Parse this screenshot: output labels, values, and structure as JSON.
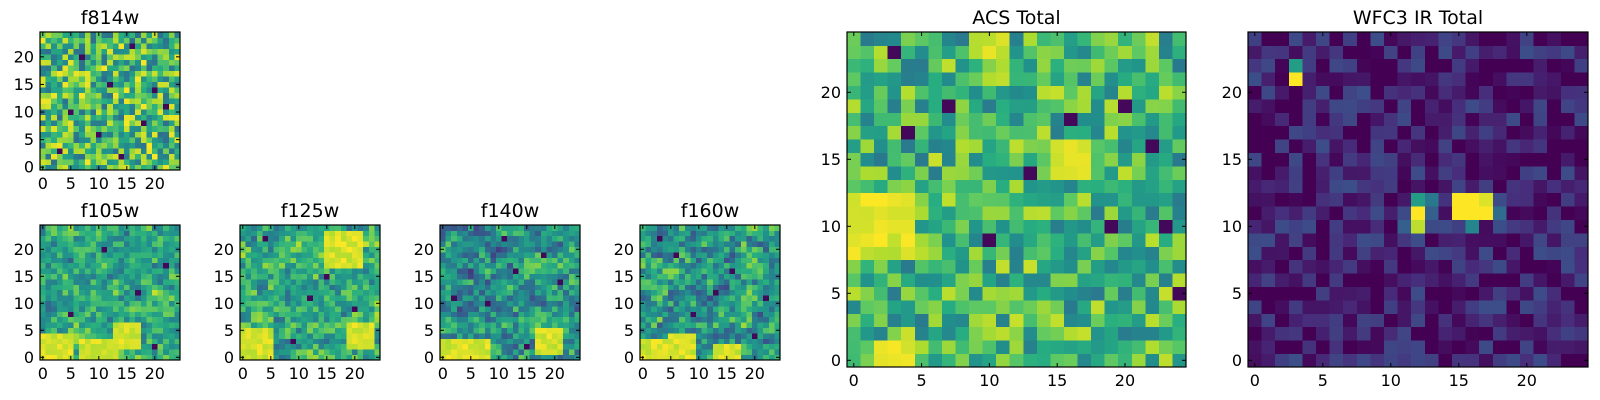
{
  "colormap": "viridis",
  "colormap_stops": [
    "#440154",
    "#472d7b",
    "#3b528b",
    "#2c728e",
    "#21918c",
    "#28ae80",
    "#5ec962",
    "#addc30",
    "#fde725"
  ],
  "chart_data": [
    {
      "id": "f814w",
      "type": "heatmap",
      "title": "f814w",
      "grid_size": 25,
      "seed": 814,
      "xlim": [
        0,
        24
      ],
      "ylim": [
        0,
        24
      ],
      "x_ticks": [
        0,
        5,
        10,
        15,
        20
      ],
      "y_ticks": [
        0,
        5,
        10,
        15,
        20
      ],
      "value_range": [
        0,
        1
      ],
      "base_level": 0.68,
      "noise_amplitude": 0.32,
      "smoothing": 0,
      "dark_pixels": [
        [
          5,
          10
        ],
        [
          18,
          8
        ],
        [
          12,
          15
        ],
        [
          7,
          20
        ],
        [
          20,
          14
        ],
        [
          3,
          3
        ],
        [
          16,
          22
        ],
        [
          10,
          6
        ],
        [
          22,
          11
        ],
        [
          14,
          2
        ]
      ],
      "bright_patches": []
    },
    {
      "id": "f105w",
      "type": "heatmap",
      "title": "f105w",
      "grid_size": 25,
      "seed": 105,
      "xlim": [
        0,
        24
      ],
      "ylim": [
        0,
        24
      ],
      "x_ticks": [
        0,
        5,
        10,
        15,
        20
      ],
      "y_ticks": [
        0,
        5,
        10,
        15,
        20
      ],
      "value_range": [
        0,
        1
      ],
      "base_level": 0.6,
      "noise_amplitude": 0.35,
      "smoothing": 1,
      "dark_pixels": [
        [
          17,
          12
        ],
        [
          20,
          2
        ],
        [
          11,
          20
        ],
        [
          5,
          8
        ],
        [
          22,
          17
        ]
      ],
      "bright_patches": [
        [
          1,
          0,
          4
        ],
        [
          10,
          0,
          3
        ],
        [
          15,
          4,
          2
        ]
      ]
    },
    {
      "id": "f125w",
      "type": "heatmap",
      "title": "f125w",
      "grid_size": 25,
      "seed": 125,
      "xlim": [
        0,
        24
      ],
      "ylim": [
        0,
        24
      ],
      "x_ticks": [
        0,
        5,
        10,
        15,
        20
      ],
      "y_ticks": [
        0,
        5,
        10,
        15,
        20
      ],
      "value_range": [
        0,
        1
      ],
      "base_level": 0.62,
      "noise_amplitude": 0.36,
      "smoothing": 1,
      "dark_pixels": [
        [
          4,
          22
        ],
        [
          20,
          9
        ],
        [
          15,
          15
        ],
        [
          9,
          3
        ],
        [
          12,
          11
        ]
      ],
      "bright_patches": [
        [
          18,
          20,
          3
        ],
        [
          2,
          2,
          3
        ],
        [
          21,
          4,
          2
        ]
      ]
    },
    {
      "id": "f140w",
      "type": "heatmap",
      "title": "f140w",
      "grid_size": 25,
      "seed": 140,
      "xlim": [
        0,
        24
      ],
      "ylim": [
        0,
        24
      ],
      "x_ticks": [
        0,
        5,
        10,
        15,
        20
      ],
      "y_ticks": [
        0,
        5,
        10,
        15,
        20
      ],
      "value_range": [
        0,
        1
      ],
      "base_level": 0.52,
      "noise_amplitude": 0.4,
      "smoothing": 1,
      "dark_pixels": [
        [
          13,
          16
        ],
        [
          18,
          19
        ],
        [
          8,
          10
        ],
        [
          2,
          11
        ],
        [
          21,
          14
        ],
        [
          15,
          2
        ],
        [
          11,
          22
        ]
      ],
      "bright_patches": [
        [
          1,
          0,
          3
        ],
        [
          6,
          1,
          2
        ],
        [
          19,
          3,
          2
        ]
      ]
    },
    {
      "id": "f160w",
      "type": "heatmap",
      "title": "f160w",
      "grid_size": 25,
      "seed": 160,
      "xlim": [
        0,
        24
      ],
      "ylim": [
        0,
        24
      ],
      "x_ticks": [
        0,
        5,
        10,
        15,
        20
      ],
      "y_ticks": [
        0,
        5,
        10,
        15,
        20
      ],
      "value_range": [
        0,
        1
      ],
      "base_level": 0.54,
      "noise_amplitude": 0.4,
      "smoothing": 1,
      "dark_pixels": [
        [
          3,
          22
        ],
        [
          16,
          16
        ],
        [
          9,
          8
        ],
        [
          20,
          4
        ],
        [
          13,
          12
        ],
        [
          6,
          19
        ],
        [
          22,
          11
        ]
      ],
      "bright_patches": [
        [
          2,
          0,
          3
        ],
        [
          7,
          2,
          2
        ],
        [
          15,
          0,
          2
        ]
      ]
    },
    {
      "id": "acs-total",
      "type": "heatmap",
      "title": "ACS Total",
      "grid_size": 25,
      "seed": 777,
      "xlim": [
        0,
        24
      ],
      "ylim": [
        0,
        24
      ],
      "x_ticks": [
        0,
        5,
        10,
        15,
        20
      ],
      "y_ticks": [
        0,
        5,
        10,
        15,
        20
      ],
      "value_range": [
        0,
        1
      ],
      "base_level": 0.66,
      "noise_amplitude": 0.26,
      "smoothing": 0,
      "dark_pixels": [
        [
          4,
          17
        ],
        [
          16,
          18
        ],
        [
          13,
          14
        ],
        [
          10,
          9
        ],
        [
          19,
          10
        ],
        [
          23,
          10
        ],
        [
          22,
          16
        ],
        [
          3,
          23
        ],
        [
          20,
          19
        ],
        [
          7,
          19
        ],
        [
          24,
          5
        ]
      ],
      "bright_patches": [
        [
          10,
          24,
          1
        ],
        [
          2,
          10,
          2
        ],
        [
          16,
          15,
          1
        ],
        [
          3,
          0,
          1
        ]
      ]
    },
    {
      "id": "wfc3-ir-total",
      "type": "heatmap",
      "title": "WFC3 IR Total",
      "grid_size": 25,
      "seed": 333,
      "xlim": [
        0,
        24
      ],
      "ylim": [
        0,
        24
      ],
      "x_ticks": [
        0,
        5,
        10,
        15,
        20
      ],
      "y_ticks": [
        0,
        5,
        10,
        15,
        20
      ],
      "value_range": [
        0,
        1
      ],
      "base_level": 0.08,
      "noise_amplitude": 0.16,
      "smoothing": 0,
      "dark_pixels": [],
      "bright_patches": [],
      "hot_pixels": [
        {
          "x": 3,
          "y": 21,
          "v": 1.0
        },
        {
          "x": 3,
          "y": 22,
          "v": 0.55
        },
        {
          "x": 12,
          "y": 11,
          "v": 1.0
        },
        {
          "x": 12,
          "y": 12,
          "v": 0.55
        },
        {
          "x": 13,
          "y": 12,
          "v": 0.4
        },
        {
          "x": 13,
          "y": 11,
          "v": 0.3
        },
        {
          "x": 12,
          "y": 10,
          "v": 0.9
        },
        {
          "x": 15,
          "y": 11,
          "v": 1.0
        },
        {
          "x": 16,
          "y": 11,
          "v": 1.0
        },
        {
          "x": 17,
          "y": 11,
          "v": 1.0
        },
        {
          "x": 15,
          "y": 12,
          "v": 1.0
        },
        {
          "x": 16,
          "y": 12,
          "v": 1.0
        },
        {
          "x": 17,
          "y": 12,
          "v": 0.95
        },
        {
          "x": 16,
          "y": 10,
          "v": 0.45
        },
        {
          "x": 18,
          "y": 11,
          "v": 0.35
        },
        {
          "x": 11,
          "y": 10,
          "v": 0.3
        },
        {
          "x": 13,
          "y": 10,
          "v": 0.22
        }
      ]
    }
  ]
}
